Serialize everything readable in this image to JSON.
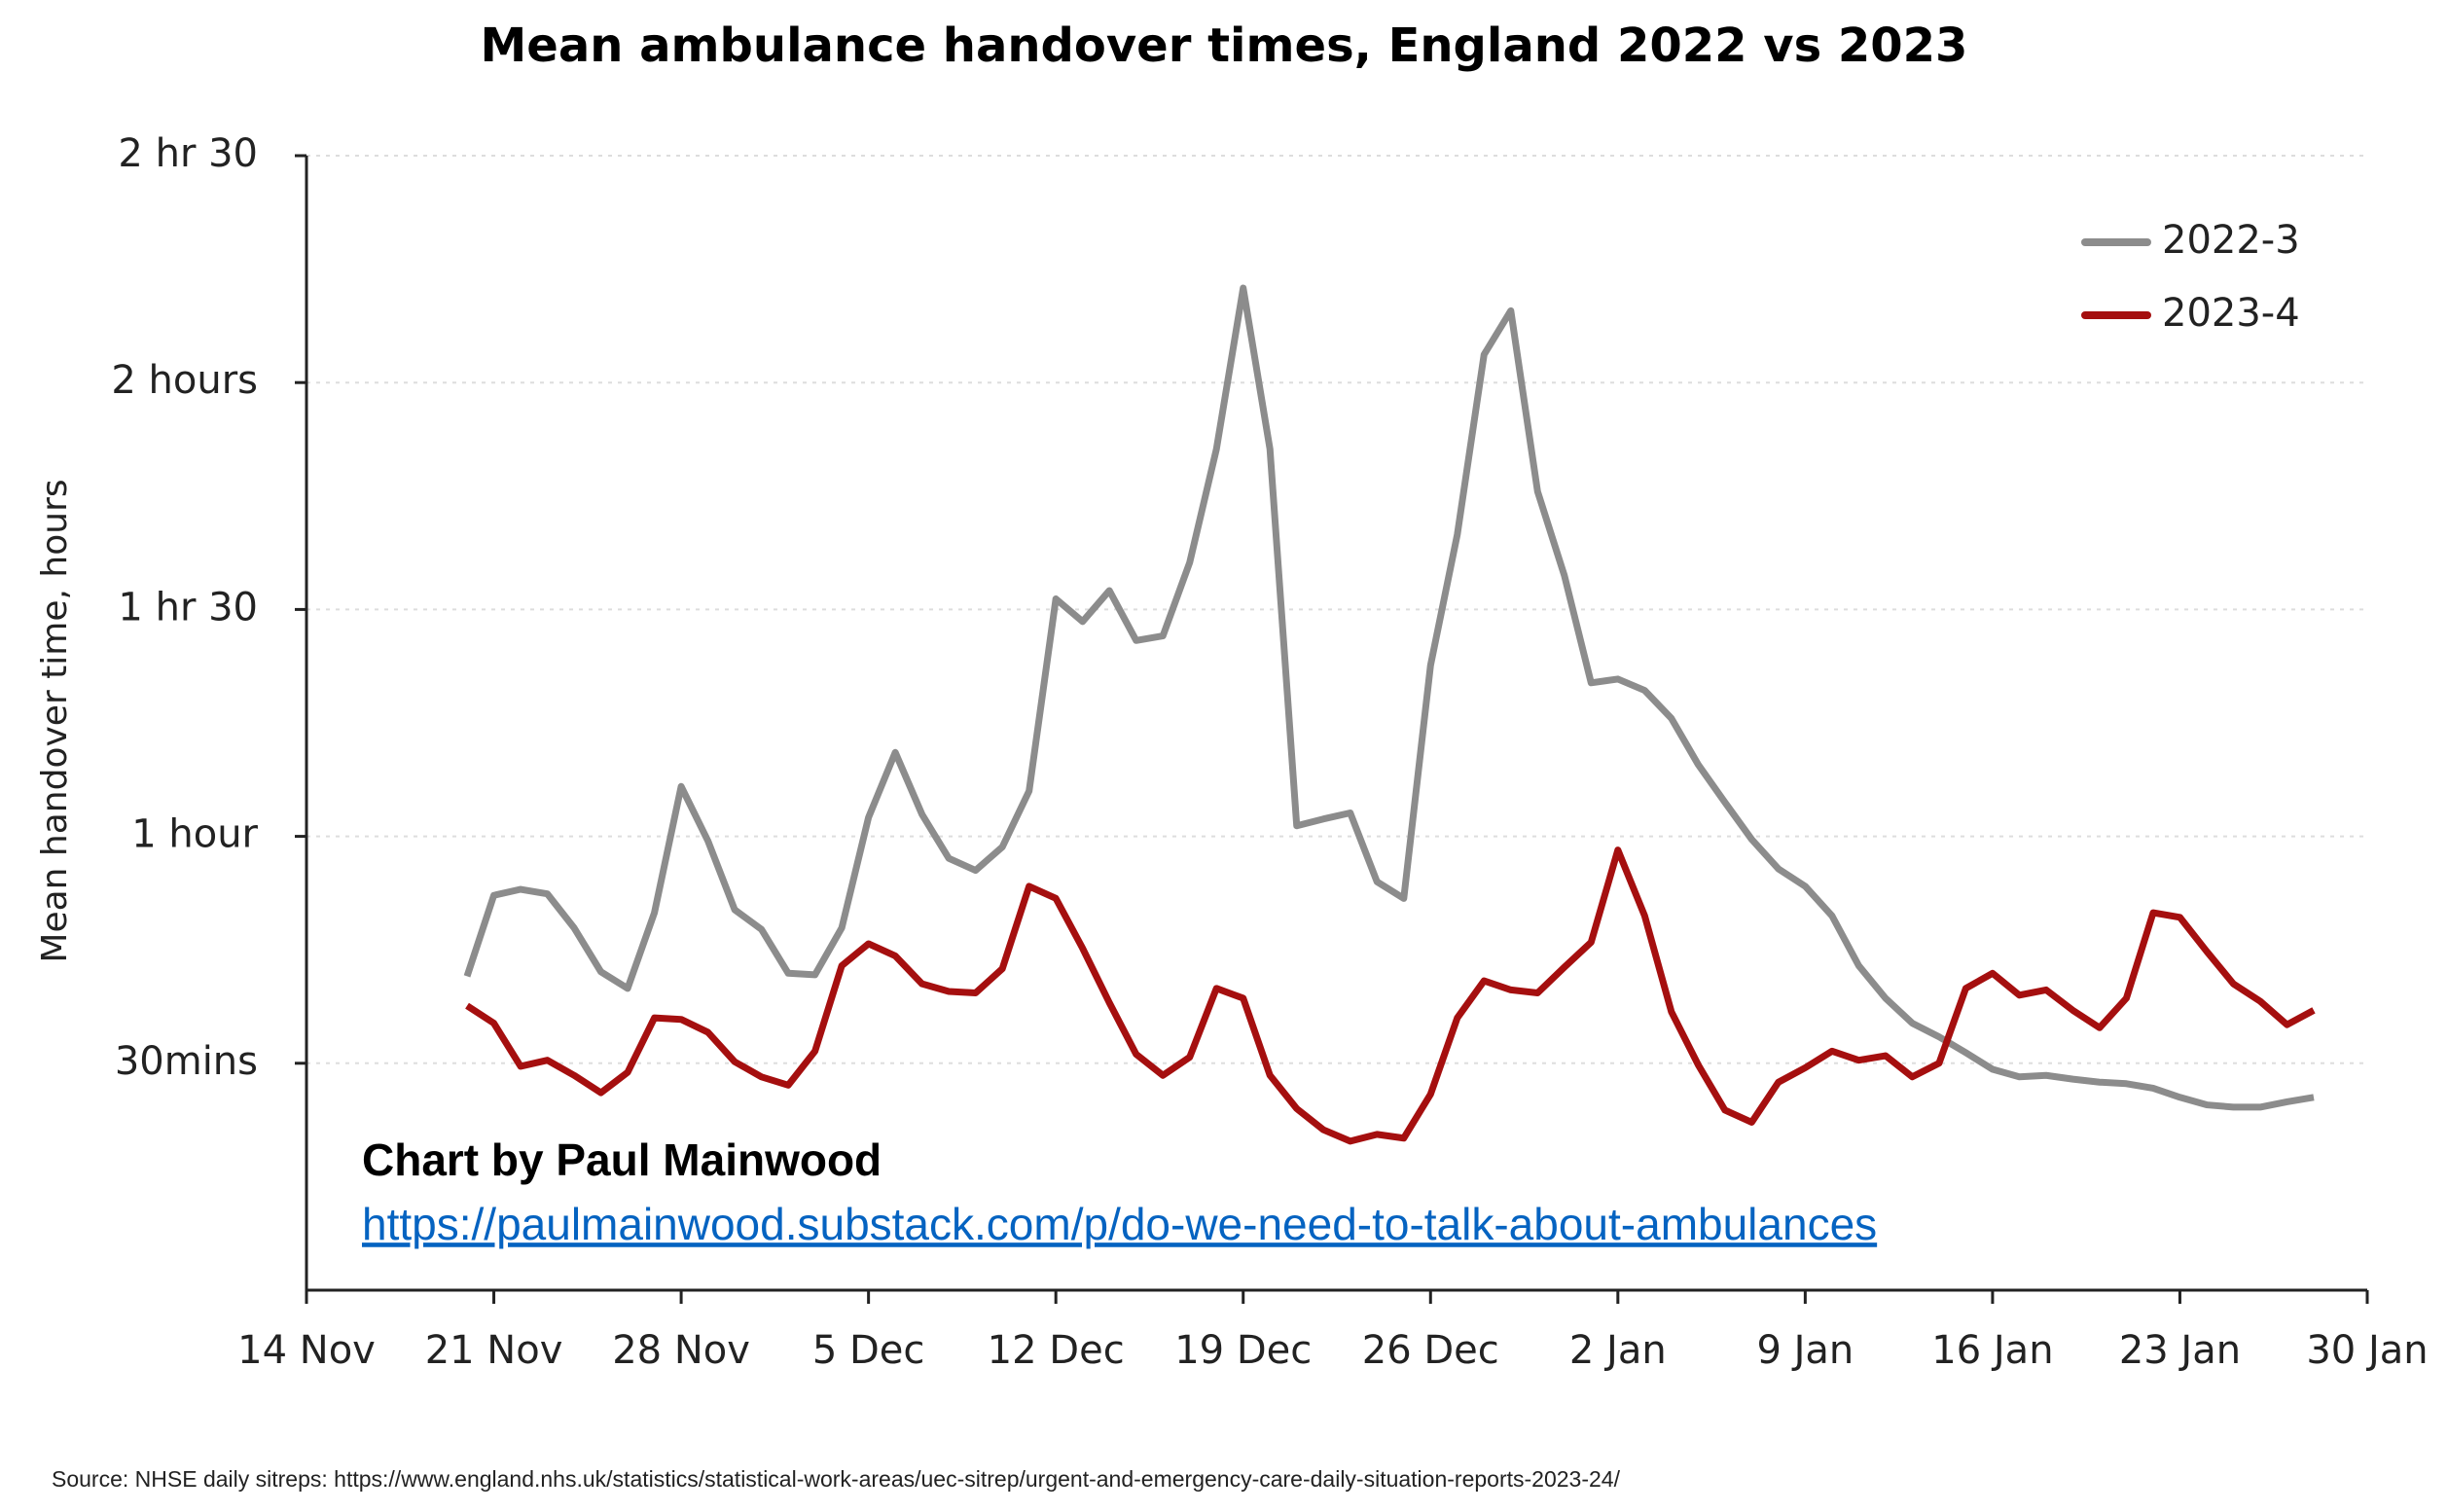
{
  "chart_data": {
    "type": "line",
    "title": "Mean ambulance handover times, England 2022 vs 2023",
    "y_label": "Mean handover time, hours",
    "annotation": "Chart by Paul Mainwood",
    "link": "https://paulmainwood.substack.com/p/do-we-need-to-talk-about-ambulances",
    "source": "Source: NHSE daily sitreps: https://www.england.nhs.uk/statistics/statistical-work-areas/uec-sitrep/urgent-and-emergency-care-daily-situation-reports-2023-24/",
    "x": [
      6,
      7,
      8,
      9,
      10,
      11,
      12,
      13,
      14,
      15,
      16,
      17,
      18,
      19,
      20,
      21,
      22,
      23,
      24,
      25,
      26,
      27,
      28,
      29,
      30,
      31,
      32,
      33,
      34,
      35,
      36,
      37,
      38,
      39,
      40,
      41,
      42,
      43,
      44,
      45,
      46,
      47,
      48,
      49,
      50,
      51,
      52,
      53,
      54,
      55,
      56,
      57,
      58,
      59,
      60,
      61,
      62,
      63,
      64,
      65,
      66,
      67,
      68,
      69,
      70,
      71,
      72,
      73,
      74,
      75
    ],
    "series": [
      {
        "name": "2022-3",
        "color": "#8c8c8c",
        "values": [
          41.5,
          52.2,
          53,
          52.4,
          47.9,
          42.1,
          39.9,
          49.9,
          66.6,
          59.4,
          50.3,
          47.7,
          41.9,
          41.7,
          47.9,
          62.5,
          71.1,
          62.9,
          57.1,
          55.5,
          58.6,
          66,
          91.4,
          88.4,
          92.5,
          85.9,
          86.5,
          96.2,
          111.2,
          132.5,
          111.2,
          61.4,
          62.3,
          63.1,
          54,
          51.8,
          82.6,
          99.9,
          123.7,
          129.5,
          105.6,
          94.5,
          80.3,
          80.8,
          79.3,
          75.6,
          69.5,
          64.5,
          59.6,
          55.7,
          53.4,
          49.5,
          42.9,
          38.6,
          35.3,
          33.5,
          31.4,
          29.2,
          28.2,
          28.4,
          27.9,
          27.5,
          27.3,
          26.7,
          25.5,
          24.5,
          24.2,
          24.2,
          24.9,
          25.5
        ]
      },
      {
        "name": "2023-4",
        "color": "#a50f0f",
        "values": [
          37.6,
          35.3,
          29.6,
          30.4,
          28.4,
          26.1,
          28.8,
          36,
          35.8,
          34.1,
          30.2,
          28.2,
          27.1,
          31.6,
          42.9,
          45.8,
          44.2,
          40.5,
          39.5,
          39.3,
          42.5,
          53.4,
          51.8,
          45.2,
          38,
          31.2,
          28.4,
          30.8,
          39.9,
          38.6,
          28.4,
          24,
          21.2,
          19.7,
          20.6,
          20.1,
          25.9,
          36,
          40.9,
          39.7,
          39.3,
          42.7,
          46,
          58.2,
          49.5,
          36.8,
          29.8,
          23.8,
          22.2,
          27.5,
          29.4,
          31.6,
          30.4,
          31,
          28.2,
          30,
          39.9,
          41.9,
          39,
          39.7,
          37,
          34.7,
          38.6,
          49.9,
          49.3,
          44.8,
          40.5,
          38.2,
          35.1,
          37
        ]
      }
    ],
    "xlim": [
      0,
      77
    ],
    "xticks": [
      {
        "value": 0,
        "label": "14 Nov"
      },
      {
        "value": 7,
        "label": "21 Nov"
      },
      {
        "value": 14,
        "label": "28 Nov"
      },
      {
        "value": 21,
        "label": "5 Dec"
      },
      {
        "value": 28,
        "label": "12 Dec"
      },
      {
        "value": 35,
        "label": "19 Dec"
      },
      {
        "value": 42,
        "label": "26 Dec"
      },
      {
        "value": 49,
        "label": "2 Jan"
      },
      {
        "value": 56,
        "label": "9 Jan"
      },
      {
        "value": 63,
        "label": "16 Jan"
      },
      {
        "value": 70,
        "label": "23 Jan"
      },
      {
        "value": 77,
        "label": "30 Jan"
      }
    ],
    "ylim": [
      0,
      150
    ],
    "yticks": [
      {
        "value": 30,
        "label": "30mins"
      },
      {
        "value": 60,
        "label": "1 hour"
      },
      {
        "value": 90,
        "label": "1 hr 30"
      },
      {
        "value": 120,
        "label": "2 hours"
      },
      {
        "value": 150,
        "label": "2 hr 30"
      }
    ],
    "grid": true
  }
}
